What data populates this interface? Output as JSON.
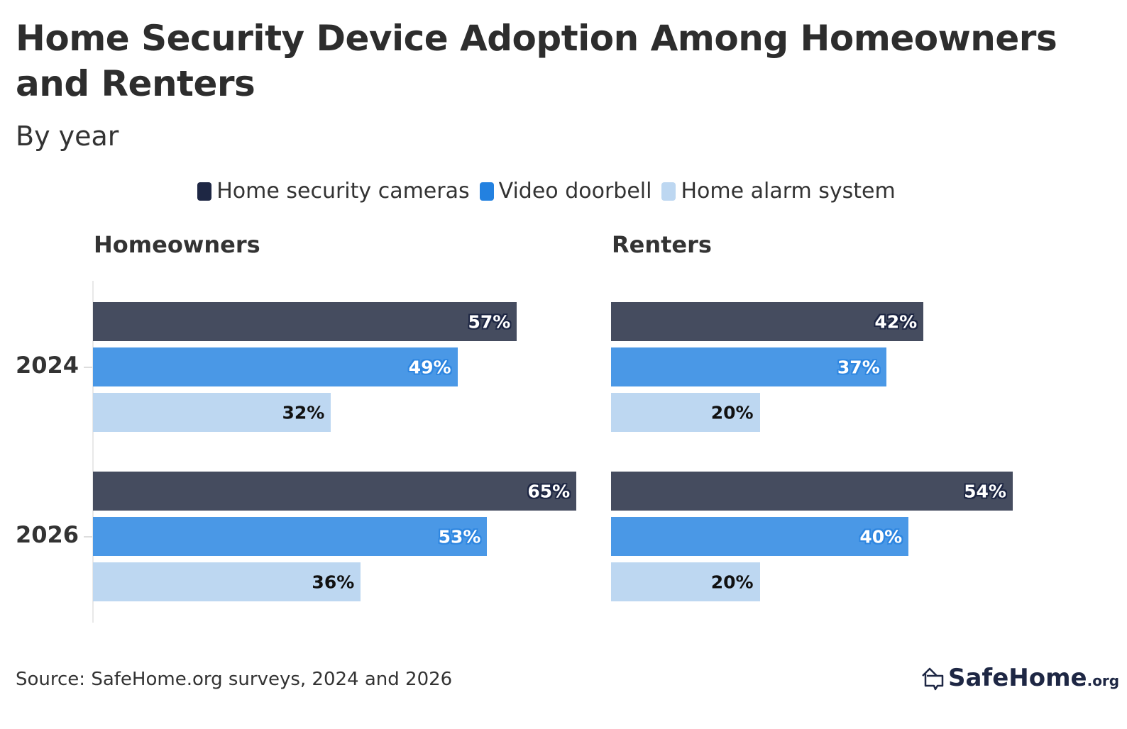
{
  "chart_data": {
    "type": "bar",
    "orientation": "horizontal",
    "title": "Home Security Device Adoption Among Homeowners and Renters",
    "subtitle": "By year",
    "categories": [
      "2024",
      "2026"
    ],
    "legend_position": "top",
    "grid": false,
    "xlim": [
      0,
      100
    ],
    "value_suffix": "%",
    "series_names": [
      "Home security cameras",
      "Video doorbell",
      "Home alarm system"
    ],
    "colors": [
      "#454c5f",
      "#4a98e6",
      "#bdd7f1"
    ],
    "legend_colors": [
      "#1e2744",
      "#2381e0",
      "#bdd7f1"
    ],
    "panels": [
      {
        "title": "Homeowners",
        "series": [
          {
            "name": "Home security cameras",
            "values": [
              57,
              65
            ]
          },
          {
            "name": "Video doorbell",
            "values": [
              49,
              53
            ]
          },
          {
            "name": "Home alarm system",
            "values": [
              32,
              36
            ]
          }
        ]
      },
      {
        "title": "Renters",
        "series": [
          {
            "name": "Home security cameras",
            "values": [
              42,
              54
            ]
          },
          {
            "name": "Video doorbell",
            "values": [
              37,
              40
            ]
          },
          {
            "name": "Home alarm system",
            "values": [
              20,
              20
            ]
          }
        ]
      }
    ],
    "source": "Source: SafeHome.org surveys, 2024 and 2026"
  },
  "logo": {
    "main": "SafeHome",
    "tld": ".org"
  }
}
